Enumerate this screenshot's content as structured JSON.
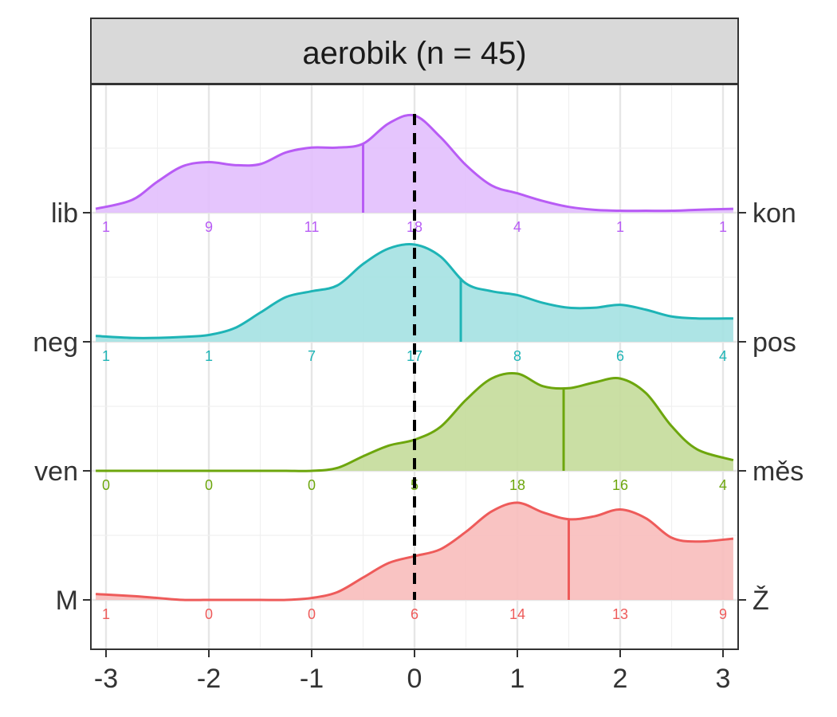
{
  "chart_data": {
    "type": "area",
    "title": "aerobik (n = 45)",
    "xlabel": "",
    "ylabel": "",
    "xlim": [
      -3.1,
      3.1
    ],
    "x_ticks": [
      "-3",
      "-2",
      "-1",
      "0",
      "1",
      "2",
      "3"
    ],
    "grid": true,
    "reference_line_x": 0,
    "count_positions": [
      -3,
      -2,
      -1,
      0,
      1,
      2,
      3
    ],
    "x": [
      -3.1,
      -2.75,
      -2.5,
      -2.25,
      -2.0,
      -1.75,
      -1.5,
      -1.25,
      -1.0,
      -0.75,
      -0.5,
      -0.25,
      0.0,
      0.25,
      0.5,
      0.75,
      1.0,
      1.25,
      1.5,
      1.75,
      2.0,
      2.25,
      2.5,
      2.75,
      3.1
    ],
    "series": [
      {
        "left_label": "lib",
        "right_label": "kon",
        "color": "#B85CF5",
        "fill": "#E2BFFD",
        "mean": -0.5,
        "counts": [
          "1",
          "9",
          "11",
          "18",
          "4",
          "1",
          "1"
        ],
        "density": [
          0.04,
          0.13,
          0.32,
          0.48,
          0.52,
          0.49,
          0.5,
          0.62,
          0.67,
          0.67,
          0.71,
          0.92,
          1.0,
          0.78,
          0.49,
          0.28,
          0.2,
          0.12,
          0.06,
          0.03,
          0.02,
          0.02,
          0.02,
          0.03,
          0.04
        ]
      },
      {
        "left_label": "neg",
        "right_label": "pos",
        "color": "#1EB4B6",
        "fill": "#A4E1E2",
        "mean": 0.45,
        "counts": [
          "1",
          "1",
          "7",
          "17",
          "8",
          "6",
          "4"
        ],
        "density": [
          0.06,
          0.04,
          0.04,
          0.05,
          0.07,
          0.14,
          0.3,
          0.46,
          0.52,
          0.58,
          0.8,
          0.96,
          1.0,
          0.88,
          0.6,
          0.52,
          0.48,
          0.4,
          0.35,
          0.35,
          0.38,
          0.33,
          0.26,
          0.24,
          0.24
        ]
      },
      {
        "left_label": "ven",
        "right_label": "měs",
        "color": "#6DA60D",
        "fill": "#C4DB9A",
        "mean": 1.45,
        "counts": [
          "0",
          "0",
          "0",
          "5",
          "18",
          "16",
          "4"
        ],
        "density": [
          0.0,
          0.0,
          0.0,
          0.0,
          0.0,
          0.0,
          0.0,
          0.0,
          0.0,
          0.03,
          0.15,
          0.26,
          0.32,
          0.45,
          0.73,
          0.95,
          1.0,
          0.87,
          0.85,
          0.91,
          0.95,
          0.8,
          0.46,
          0.22,
          0.11
        ]
      },
      {
        "left_label": "M",
        "right_label": "Ž",
        "color": "#EE5B5A",
        "fill": "#F8BDBB",
        "mean": 1.5,
        "counts": [
          "1",
          "0",
          "0",
          "6",
          "14",
          "13",
          "9"
        ],
        "density": [
          0.06,
          0.04,
          0.02,
          0.0,
          0.0,
          0.0,
          0.0,
          0.0,
          0.02,
          0.08,
          0.23,
          0.38,
          0.45,
          0.52,
          0.7,
          0.91,
          1.0,
          0.9,
          0.83,
          0.86,
          0.93,
          0.84,
          0.64,
          0.6,
          0.63
        ]
      }
    ]
  }
}
